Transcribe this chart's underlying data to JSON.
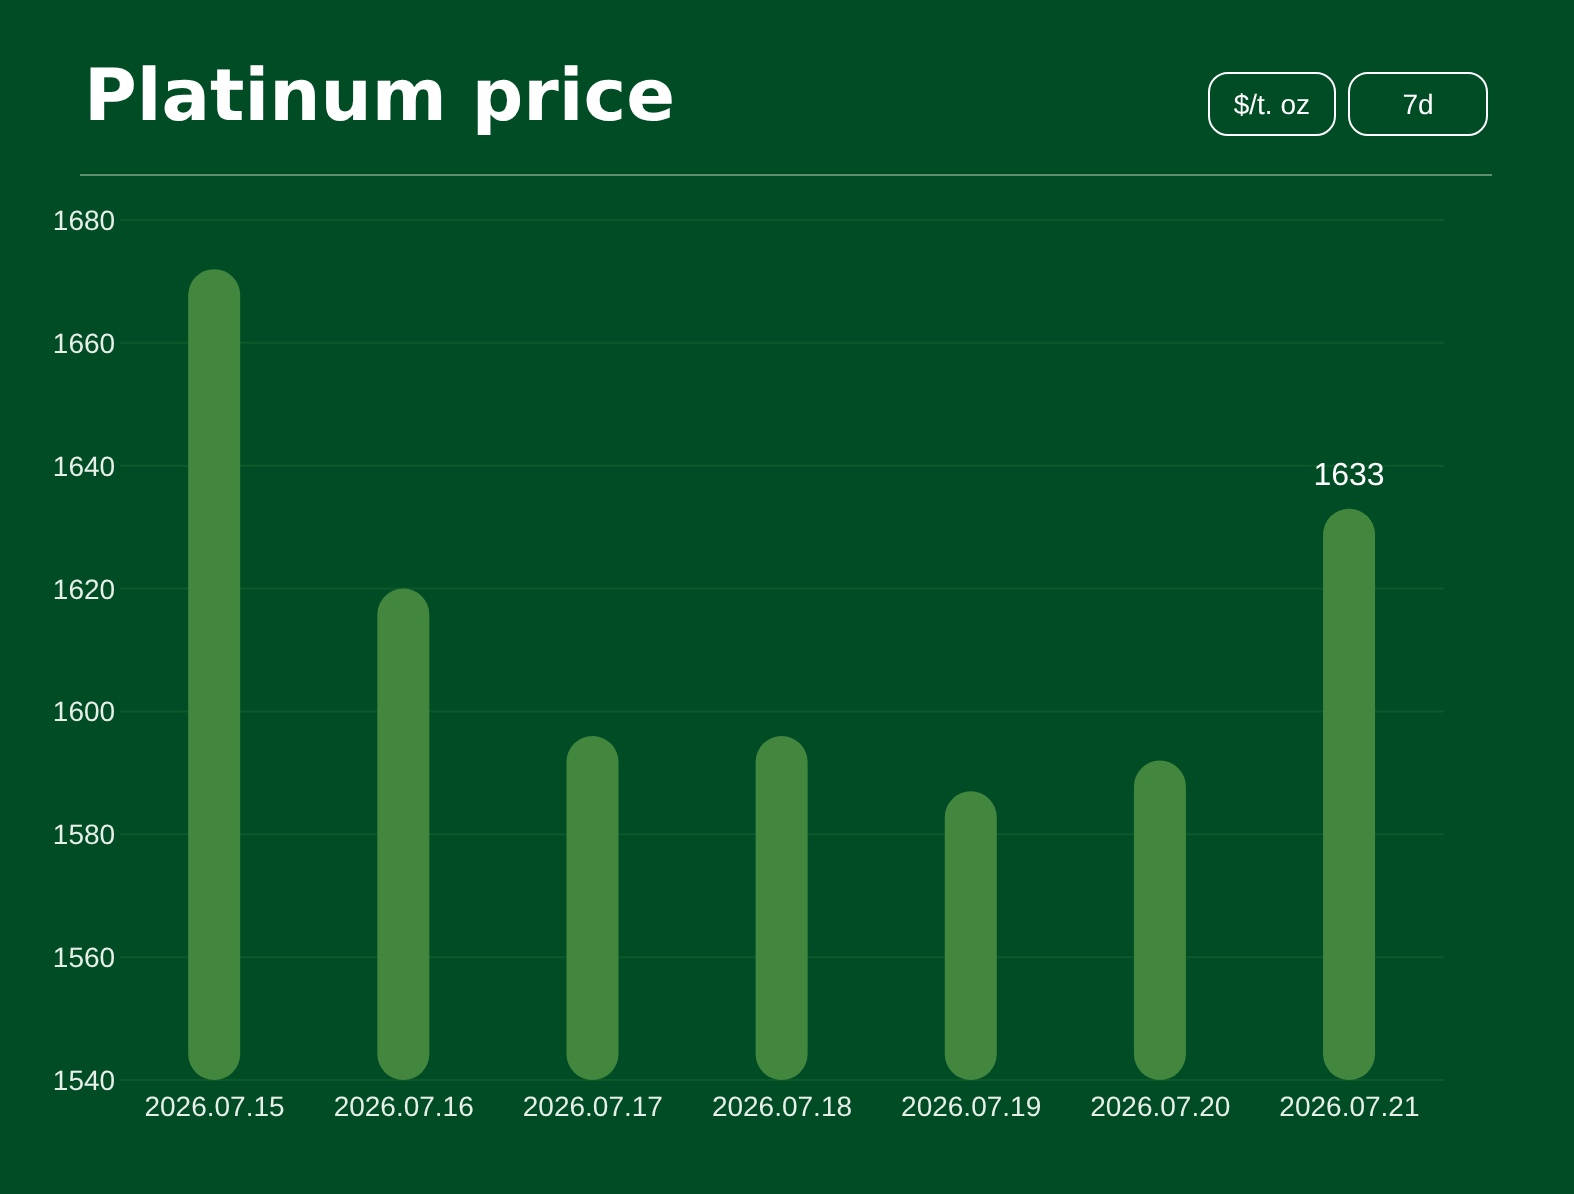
{
  "chart_data": {
    "type": "bar",
    "title": "Platinum price",
    "annotations": [
      "$/t. oz",
      "7d"
    ],
    "categories": [
      "2026.07.15",
      "2026.07.16",
      "2026.07.17",
      "2026.07.18",
      "2026.07.19",
      "2026.07.20",
      "2026.07.21"
    ],
    "values": [
      1672,
      1620,
      1596,
      1596,
      1587,
      1592,
      1633
    ],
    "value_labels": [
      null,
      null,
      null,
      null,
      null,
      null,
      "1633"
    ],
    "color": "#43873f",
    "ylim": [
      1540,
      1680
    ],
    "yticks": [
      1540,
      1560,
      1580,
      1600,
      1620,
      1640,
      1660,
      1680
    ],
    "grid": "y"
  }
}
